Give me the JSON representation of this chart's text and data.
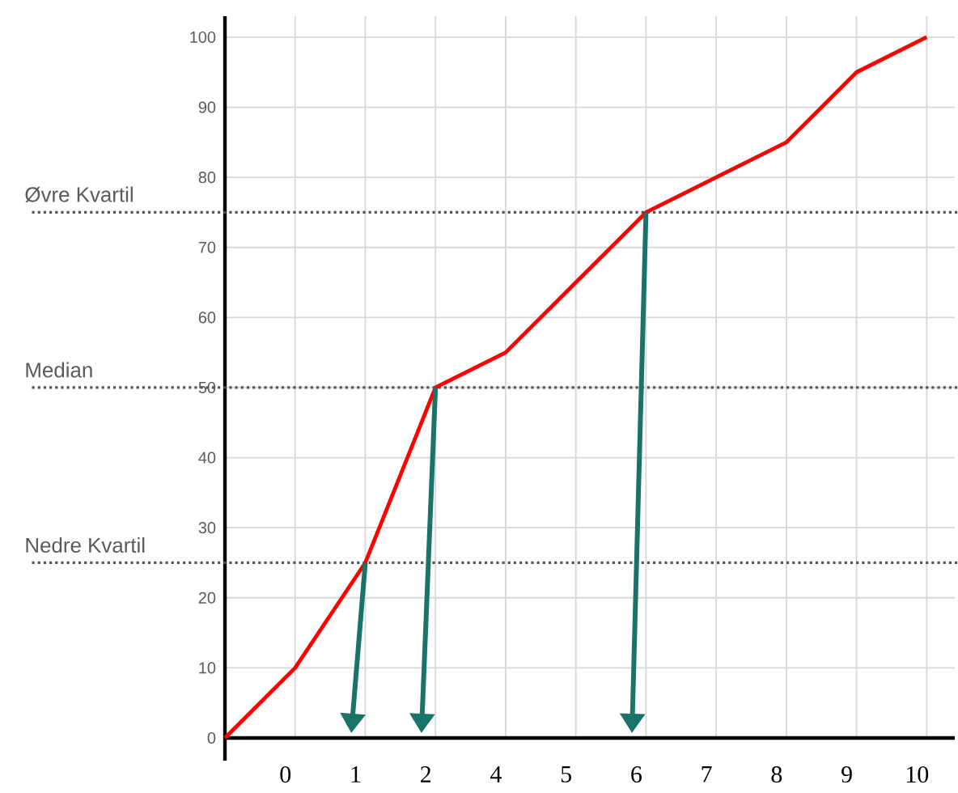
{
  "chart_data": {
    "type": "line",
    "categories": [
      null,
      "0",
      "1",
      "2",
      "4",
      "5",
      "6",
      "7",
      "8",
      "9",
      "10"
    ],
    "values": [
      0,
      10,
      25,
      50,
      55,
      65,
      75,
      80,
      85,
      95,
      100
    ],
    "color": "#ff0000",
    "ylim": [
      0,
      103
    ],
    "yticks": [
      0,
      10,
      20,
      30,
      40,
      50,
      60,
      70,
      80,
      90,
      100
    ],
    "grid": true,
    "ref_lines": [
      {
        "axis": "y",
        "value": 25,
        "label": "Nedre Kvartil",
        "color": "#555555",
        "line_style": "dotted"
      },
      {
        "axis": "y",
        "value": 50,
        "label": "Median",
        "color": "#555555",
        "line_style": "dotted"
      },
      {
        "axis": "y",
        "value": 75,
        "label": "Øvre Kvartil",
        "color": "#555555",
        "line_style": "dotted"
      }
    ]
  }
}
